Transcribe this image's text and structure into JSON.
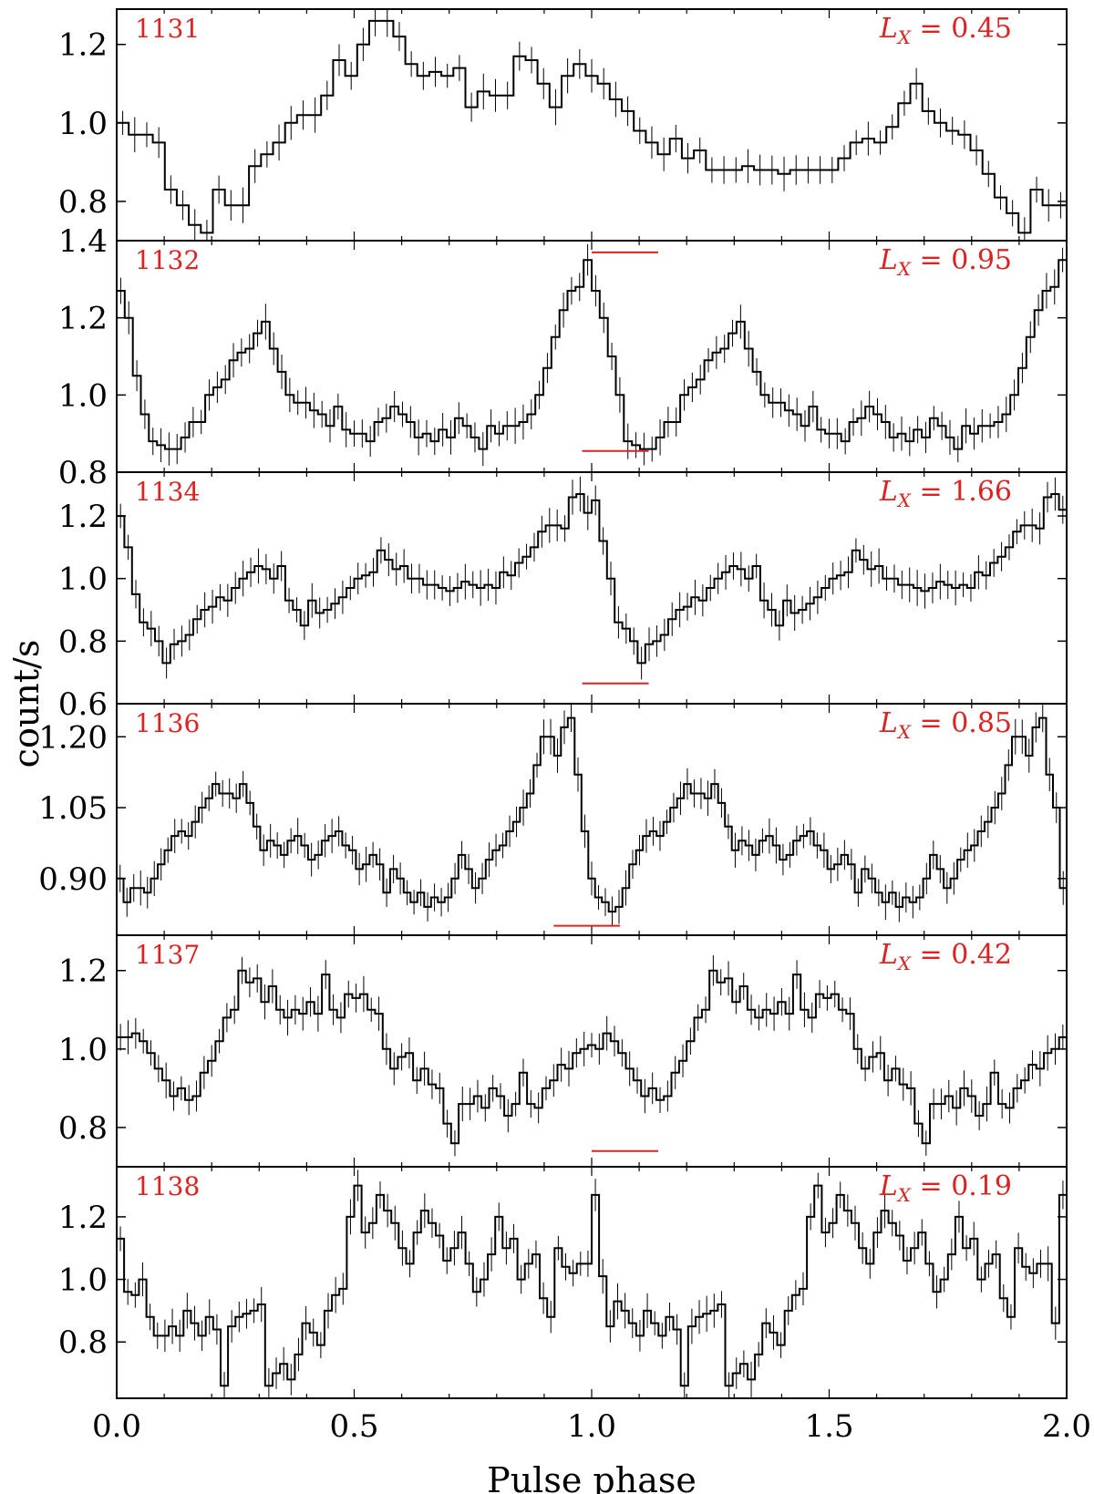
{
  "figure": {
    "xlabel": "Pulse phase",
    "ylabel": "count/s",
    "annotation_color": "#dd2222",
    "line_color": "#000000"
  },
  "chart_data": {
    "type": "line",
    "style": "step-with-error-bars",
    "xlabel": "Pulse phase",
    "ylabel": "count/s",
    "xlim": [
      0.0,
      2.0
    ],
    "xticks": [
      "0.0",
      "0.5",
      "1.0",
      "1.5",
      "2.0"
    ],
    "shared_x": true,
    "panels": [
      {
        "id": "1131",
        "lx_label": "L",
        "lx_sub": "X",
        "lx_value": " = 0.45",
        "ylim": [
          0.7,
          1.29
        ],
        "yticks": [
          0.8,
          1.0,
          1.2
        ],
        "ytick_labels": [
          "0.8",
          "1.0",
          "1.2"
        ],
        "bar": [
          1.0,
          1.14
        ],
        "bar_y": 0.67,
        "values": [
          1.0,
          0.97,
          0.97,
          0.95,
          0.83,
          0.79,
          0.74,
          0.72,
          0.83,
          0.79,
          0.79,
          0.89,
          0.92,
          0.95,
          1.0,
          1.02,
          1.02,
          1.07,
          1.16,
          1.12,
          1.2,
          1.26,
          1.26,
          1.22,
          1.15,
          1.12,
          1.13,
          1.12,
          1.14,
          1.04,
          1.08,
          1.07,
          1.07,
          1.17,
          1.16,
          1.1,
          1.04,
          1.12,
          1.15,
          1.12,
          1.1,
          1.06,
          1.03,
          0.98,
          0.95,
          0.92,
          0.96,
          0.91,
          0.93,
          0.88,
          0.88,
          0.88,
          0.89,
          0.88,
          0.88,
          0.87,
          0.88,
          0.88,
          0.88,
          0.88,
          0.91,
          0.95,
          0.96,
          0.95,
          0.99,
          1.05,
          1.1,
          1.03,
          1.0,
          0.98,
          0.97,
          0.93,
          0.87,
          0.81,
          0.77,
          0.72,
          0.83,
          0.79,
          0.79
        ]
      },
      {
        "id": "1132",
        "lx_label": "L",
        "lx_sub": "X",
        "lx_value": " = 0.95",
        "ylim": [
          0.8,
          1.4
        ],
        "yticks": [
          0.8,
          1.0,
          1.2,
          1.4
        ],
        "ytick_labels": [
          "0.8",
          "1.0",
          "1.2",
          "1.4"
        ],
        "bar": [
          0.98,
          1.12
        ],
        "bar_y": 0.855,
        "values": [
          1.27,
          1.2,
          1.05,
          0.95,
          0.88,
          0.87,
          0.86,
          0.86,
          0.89,
          0.93,
          0.93,
          1.0,
          1.02,
          1.04,
          1.09,
          1.11,
          1.12,
          1.16,
          1.19,
          1.12,
          1.06,
          1.0,
          0.98,
          0.98,
          0.96,
          0.95,
          0.92,
          0.97,
          0.91,
          0.9,
          0.9,
          0.88,
          0.93,
          0.94,
          0.97,
          0.95,
          0.93,
          0.89,
          0.9,
          0.88,
          0.91,
          0.89,
          0.94,
          0.92,
          0.89,
          0.86,
          0.92,
          0.9,
          0.92,
          0.92,
          0.93,
          0.95,
          1.0,
          1.07,
          1.15,
          1.22,
          1.27,
          1.28,
          1.35,
          1.27,
          1.2,
          1.1,
          1.0,
          0.88,
          0.87,
          0.86,
          0.86,
          0.89,
          0.93,
          0.93,
          1.0,
          1.02,
          1.04,
          1.09,
          1.11,
          1.12,
          1.16,
          1.19,
          1.12,
          1.06,
          1.0,
          0.98,
          0.98,
          0.96,
          0.95,
          0.92,
          0.97,
          0.91,
          0.9,
          0.9,
          0.88,
          0.93,
          0.94,
          0.97,
          0.95,
          0.93,
          0.89,
          0.9,
          0.88,
          0.91,
          0.89,
          0.94,
          0.92,
          0.89,
          0.86,
          0.92,
          0.9,
          0.92,
          0.92,
          0.93,
          0.95,
          1.0,
          1.07,
          1.15,
          1.22,
          1.27,
          1.28,
          1.35
        ]
      },
      {
        "id": "1134",
        "lx_label": "L",
        "lx_sub": "X",
        "lx_value": " = 1.66",
        "ylim": [
          0.6,
          1.34
        ],
        "yticks": [
          0.6,
          0.8,
          1.0,
          1.2
        ],
        "ytick_labels": [
          "0.6",
          "0.8",
          "1.0",
          "1.2"
        ],
        "bar": [
          0.98,
          1.12
        ],
        "bar_y": 0.665,
        "values": [
          1.2,
          1.1,
          0.95,
          0.86,
          0.84,
          0.8,
          0.73,
          0.79,
          0.8,
          0.82,
          0.87,
          0.9,
          0.91,
          0.94,
          0.93,
          0.97,
          1.0,
          1.02,
          1.04,
          1.03,
          1.0,
          1.04,
          0.93,
          0.9,
          0.85,
          0.93,
          0.89,
          0.9,
          0.92,
          0.94,
          0.97,
          1.0,
          1.01,
          1.02,
          1.09,
          1.06,
          1.03,
          1.04,
          1.0,
          1.0,
          0.98,
          0.98,
          0.97,
          0.96,
          0.97,
          0.99,
          0.98,
          0.97,
          0.98,
          0.97,
          1.02,
          1.01,
          1.05,
          1.07,
          1.1,
          1.15,
          1.17,
          1.17,
          1.16,
          1.26,
          1.27,
          1.21,
          1.25,
          1.12,
          1.0,
          0.86,
          0.84,
          0.8,
          0.73,
          0.79,
          0.8,
          0.82,
          0.87,
          0.9,
          0.91,
          0.94,
          0.93,
          0.97,
          1.0,
          1.02,
          1.04,
          1.03,
          1.0,
          1.04,
          0.93,
          0.9,
          0.85,
          0.93,
          0.89,
          0.9,
          0.92,
          0.94,
          0.97,
          1.0,
          1.01,
          1.02,
          1.09,
          1.06,
          1.03,
          1.04,
          1.0,
          1.0,
          0.98,
          0.98,
          0.97,
          0.96,
          0.97,
          0.99,
          0.98,
          0.97,
          0.98,
          0.97,
          1.02,
          1.01,
          1.05,
          1.07,
          1.1,
          1.15,
          1.17,
          1.17,
          1.16,
          1.26,
          1.27,
          1.22
        ]
      },
      {
        "id": "1136",
        "lx_label": "L",
        "lx_sub": "X",
        "lx_value": " = 0.85",
        "ylim": [
          0.78,
          1.27
        ],
        "yticks": [
          0.9,
          1.05,
          1.2
        ],
        "ytick_labels": [
          "0.90",
          "1.05",
          "1.20"
        ],
        "bar": [
          0.92,
          1.06
        ],
        "bar_y": 0.8,
        "values": [
          0.9,
          0.85,
          0.88,
          0.88,
          0.87,
          0.9,
          0.93,
          0.96,
          0.99,
          1.0,
          0.99,
          1.02,
          1.05,
          1.07,
          1.1,
          1.08,
          1.08,
          1.07,
          1.1,
          1.06,
          1.01,
          0.96,
          0.98,
          0.97,
          0.95,
          0.98,
          0.99,
          0.97,
          0.94,
          0.95,
          0.98,
          0.99,
          1.0,
          0.97,
          0.96,
          0.92,
          0.93,
          0.95,
          0.93,
          0.87,
          0.92,
          0.9,
          0.87,
          0.85,
          0.87,
          0.84,
          0.86,
          0.85,
          0.86,
          0.9,
          0.95,
          0.92,
          0.88,
          0.9,
          0.94,
          0.96,
          0.97,
          1.0,
          1.02,
          1.05,
          1.08,
          1.14,
          1.2,
          1.2,
          1.16,
          1.22,
          1.24,
          1.12,
          1.0,
          0.9,
          0.86,
          0.85,
          0.83,
          0.84,
          0.88,
          0.93,
          0.96,
          0.99,
          1.0,
          0.99,
          1.02,
          1.05,
          1.07,
          1.1,
          1.08,
          1.08,
          1.07,
          1.1,
          1.06,
          1.01,
          0.96,
          0.98,
          0.97,
          0.95,
          0.98,
          0.99,
          0.97,
          0.94,
          0.95,
          0.98,
          0.99,
          1.0,
          0.97,
          0.96,
          0.92,
          0.93,
          0.95,
          0.93,
          0.87,
          0.92,
          0.9,
          0.87,
          0.85,
          0.87,
          0.84,
          0.86,
          0.85,
          0.86,
          0.9,
          0.95,
          0.92,
          0.88,
          0.9,
          0.94,
          0.96,
          0.97,
          1.0,
          1.02,
          1.05,
          1.08,
          1.14,
          1.2,
          1.2,
          1.16,
          1.22,
          1.24,
          1.12,
          1.05,
          0.88
        ]
      },
      {
        "id": "1137",
        "lx_label": "L",
        "lx_sub": "X",
        "lx_value": " = 0.42",
        "ylim": [
          0.7,
          1.29
        ],
        "yticks": [
          0.8,
          1.0,
          1.2
        ],
        "ytick_labels": [
          "0.8",
          "1.0",
          "1.2"
        ],
        "bar": [
          1.0,
          1.14
        ],
        "bar_y": 0.74,
        "values": [
          1.03,
          1.03,
          1.04,
          1.02,
          0.99,
          0.95,
          0.92,
          0.88,
          0.9,
          0.87,
          0.88,
          0.94,
          0.97,
          1.02,
          1.08,
          1.1,
          1.2,
          1.17,
          1.18,
          1.12,
          1.16,
          1.1,
          1.08,
          1.1,
          1.09,
          1.12,
          1.09,
          1.19,
          1.1,
          1.08,
          1.14,
          1.13,
          1.14,
          1.1,
          1.09,
          1.0,
          0.95,
          0.98,
          0.99,
          0.92,
          0.95,
          0.91,
          0.9,
          0.81,
          0.76,
          0.86,
          0.86,
          0.88,
          0.85,
          0.9,
          0.88,
          0.83,
          0.86,
          0.94,
          0.86,
          0.85,
          0.9,
          0.92,
          0.96,
          0.95,
          0.99,
          1.0,
          1.01,
          1.0,
          1.04,
          1.02,
          0.99,
          0.95,
          0.92,
          0.88,
          0.9,
          0.87,
          0.88,
          0.94,
          0.97,
          1.02,
          1.08,
          1.1,
          1.2,
          1.17,
          1.18,
          1.12,
          1.16,
          1.1,
          1.08,
          1.1,
          1.09,
          1.12,
          1.09,
          1.19,
          1.1,
          1.08,
          1.14,
          1.13,
          1.14,
          1.1,
          1.09,
          1.0,
          0.95,
          0.98,
          0.99,
          0.92,
          0.95,
          0.91,
          0.9,
          0.81,
          0.76,
          0.86,
          0.86,
          0.88,
          0.85,
          0.9,
          0.88,
          0.83,
          0.86,
          0.94,
          0.86,
          0.85,
          0.9,
          0.92,
          0.96,
          0.95,
          0.99,
          1.0,
          1.03
        ]
      },
      {
        "id": "1138",
        "lx_label": "L",
        "lx_sub": "X",
        "lx_value": " = 0.19",
        "ylim": [
          0.62,
          1.36
        ],
        "yticks": [
          0.8,
          1.0,
          1.2
        ],
        "ytick_labels": [
          "0.8",
          "1.0",
          "1.2"
        ],
        "bar": null,
        "bar_y": null,
        "values": [
          1.13,
          0.96,
          0.95,
          1.0,
          0.88,
          0.82,
          0.82,
          0.85,
          0.82,
          0.9,
          0.86,
          0.82,
          0.88,
          0.84,
          0.66,
          0.85,
          0.88,
          0.89,
          0.9,
          0.92,
          0.66,
          0.7,
          0.73,
          0.68,
          0.76,
          0.86,
          0.83,
          0.79,
          0.9,
          0.95,
          0.97,
          1.2,
          1.3,
          1.15,
          1.18,
          1.27,
          1.22,
          1.18,
          1.1,
          1.05,
          1.15,
          1.22,
          1.18,
          1.14,
          1.06,
          1.1,
          1.15,
          1.05,
          0.96,
          1.0,
          1.08,
          1.2,
          1.1,
          1.13,
          1.0,
          1.05,
          1.08,
          0.94,
          0.88,
          1.1,
          1.04,
          1.02,
          1.05,
          1.05,
          1.27,
          1.01,
          0.85,
          0.93,
          0.9,
          0.86,
          0.82,
          0.9,
          0.86,
          0.82,
          0.88,
          0.84,
          0.66,
          0.85,
          0.88,
          0.89,
          0.9,
          0.92,
          0.66,
          0.7,
          0.73,
          0.68,
          0.76,
          0.86,
          0.83,
          0.79,
          0.9,
          0.95,
          0.97,
          1.2,
          1.3,
          1.15,
          1.18,
          1.27,
          1.22,
          1.18,
          1.1,
          1.05,
          1.15,
          1.22,
          1.18,
          1.14,
          1.06,
          1.1,
          1.15,
          1.05,
          0.96,
          1.0,
          1.08,
          1.2,
          1.1,
          1.13,
          1.0,
          1.05,
          1.08,
          0.94,
          0.88,
          1.1,
          1.04,
          1.02,
          1.05,
          1.05,
          0.86,
          1.27
        ]
      }
    ]
  }
}
